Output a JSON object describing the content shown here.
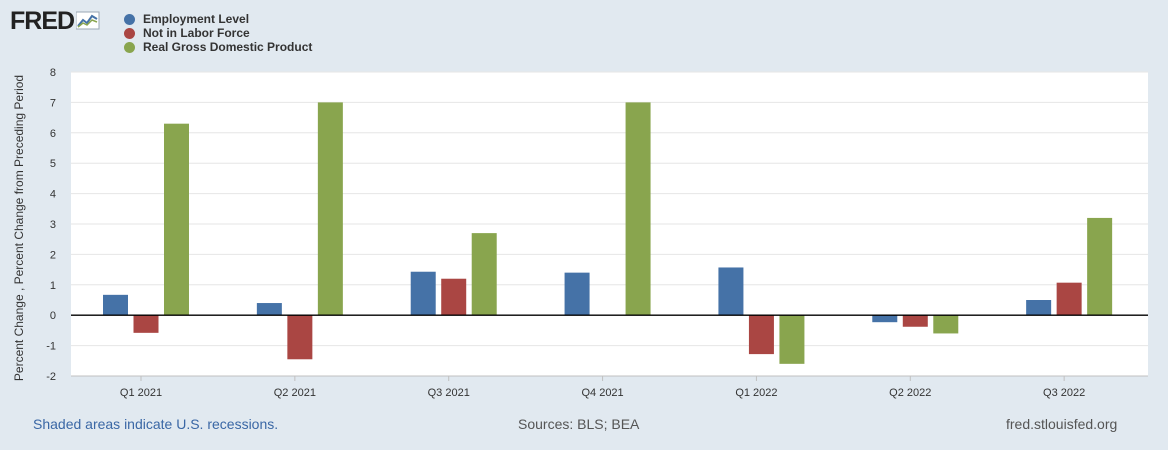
{
  "logo": {
    "text": "FRED"
  },
  "chart_data": {
    "type": "bar",
    "title": "",
    "xlabel": "",
    "ylabel": "Percent Change , Percent Change from Preceding Period",
    "ylim": [
      -2,
      8
    ],
    "yticks": [
      -2,
      -1,
      0,
      1,
      2,
      3,
      4,
      5,
      6,
      7,
      8
    ],
    "categories": [
      "Q1 2021",
      "Q2 2021",
      "Q3 2021",
      "Q4 2021",
      "Q1 2022",
      "Q2 2022",
      "Q3 2022"
    ],
    "series": [
      {
        "name": "Employment Level",
        "color": "#4572a7",
        "values": [
          0.67,
          0.4,
          1.43,
          1.4,
          1.57,
          -0.23,
          0.5
        ]
      },
      {
        "name": "Not in Labor Force",
        "color": "#aa4643",
        "values": [
          -0.58,
          -1.45,
          1.2,
          0.0,
          -1.28,
          -0.38,
          1.07
        ]
      },
      {
        "name": "Real Gross Domestic Product",
        "color": "#89a54e",
        "values": [
          6.3,
          7.0,
          2.7,
          7.0,
          -1.6,
          -0.6,
          3.2
        ]
      }
    ],
    "grid": true,
    "legend": "top-left"
  },
  "footer": {
    "recession_note": "Shaded areas indicate U.S. recessions.",
    "sources": "Sources: BLS; BEA",
    "site": "fred.stlouisfed.org"
  }
}
